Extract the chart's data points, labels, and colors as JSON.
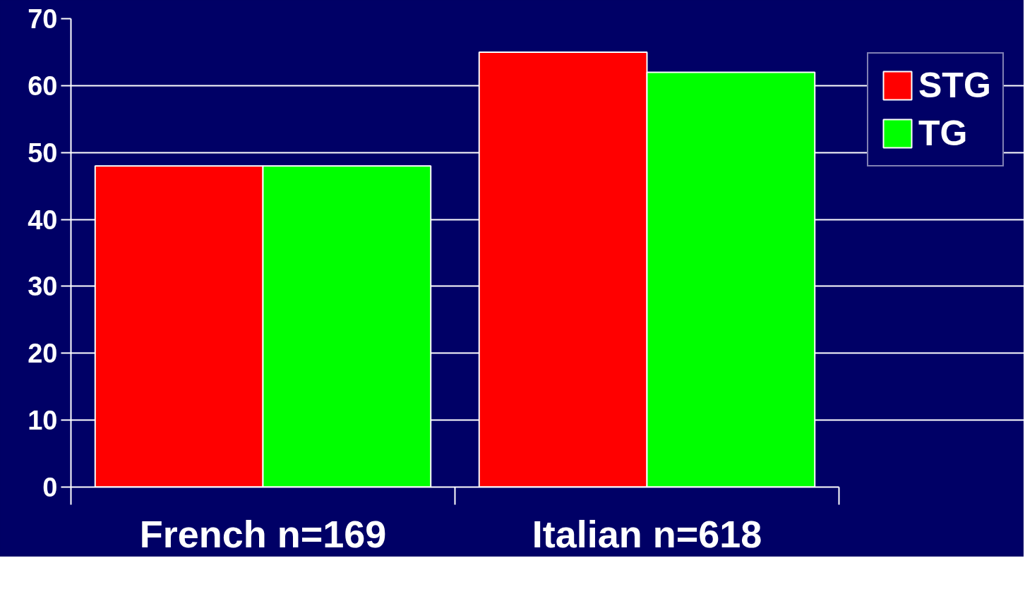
{
  "chart_data": {
    "type": "bar",
    "categories": [
      "French n=169",
      "Italian n=618"
    ],
    "series": [
      {
        "name": "STG",
        "color": "#ff0000",
        "values": [
          48,
          65
        ]
      },
      {
        "name": "TG",
        "color": "#00ff00",
        "values": [
          48,
          62
        ]
      }
    ],
    "ylim": [
      0,
      70
    ],
    "yticks": [
      0,
      10,
      20,
      30,
      40,
      50,
      60,
      70
    ],
    "grid": "y",
    "legend": "top right"
  }
}
